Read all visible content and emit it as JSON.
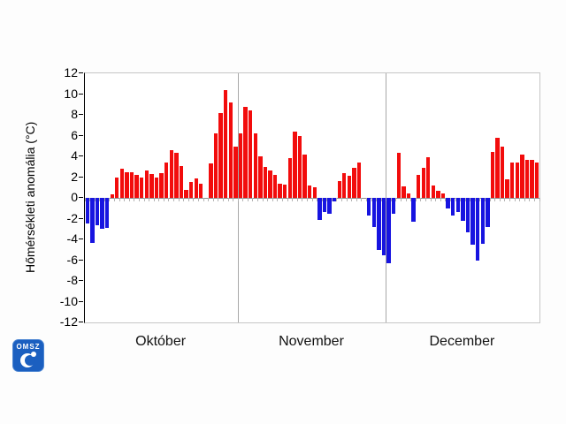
{
  "chart_data": {
    "type": "bar",
    "title": "",
    "ylabel": "Hőmérsékleti anomália (°C)",
    "ylim": [
      -12,
      12
    ],
    "ytick_step": 2,
    "ytick_labels": [
      "12",
      "10",
      "8",
      "6",
      "4",
      "2",
      "0",
      "-2",
      "-4",
      "-6",
      "-8",
      "-10",
      "-12"
    ],
    "grid": "vertical month separators only, no horizontal gridlines",
    "legend_position": "none",
    "bar_colors": {
      "positive": "#f20c0c",
      "negative": "#1714e0"
    },
    "unit": "°C",
    "months": [
      {
        "label": "Október",
        "values": [
          -2.5,
          -4.3,
          -2.6,
          -3.0,
          -2.9,
          0.3,
          2.0,
          2.8,
          2.5,
          2.5,
          2.2,
          2.0,
          2.6,
          2.3,
          2.0,
          2.4,
          3.4,
          4.6,
          4.3,
          3.1,
          0.8,
          1.5,
          1.9,
          1.4,
          0,
          3.3,
          6.2,
          8.2,
          10.4,
          9.2,
          4.9
        ]
      },
      {
        "label": "November",
        "values": [
          6.2,
          8.8,
          8.4,
          6.2,
          4.0,
          3.0,
          2.6,
          2.2,
          1.4,
          1.3,
          3.8,
          6.4,
          6.0,
          4.2,
          1.2,
          1.0,
          -2.1,
          -1.4,
          -1.5,
          -0.3,
          1.6,
          2.4,
          2.1,
          2.9,
          3.4,
          0,
          -1.7,
          -2.8,
          -5.0,
          -5.5
        ]
      },
      {
        "label": "December",
        "values": [
          -6.3,
          -1.5,
          4.3,
          1.1,
          0.4,
          -2.3,
          2.2,
          2.9,
          3.9,
          1.2,
          0.7,
          0.4,
          -1.0,
          -1.7,
          -1.4,
          -2.2,
          -3.3,
          -4.5,
          -6.0,
          -4.4,
          -2.8,
          4.4,
          5.8,
          4.9,
          1.8,
          3.4,
          3.4,
          4.2,
          3.7,
          3.7,
          3.4
        ]
      }
    ]
  },
  "logo": {
    "text": "OMSZ"
  }
}
